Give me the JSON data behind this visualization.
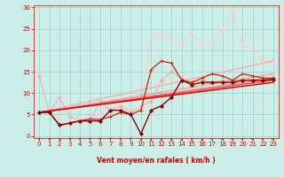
{
  "background_color": "#cceee8",
  "grid_color": "#aad8d0",
  "xlabel": "Vent moyen/en rafales ( km/h )",
  "xlabel_color": "#cc0000",
  "tick_color": "#cc0000",
  "xlim": [
    -0.5,
    23.5
  ],
  "ylim": [
    -0.5,
    30.5
  ],
  "xticks": [
    0,
    1,
    2,
    3,
    4,
    5,
    6,
    7,
    8,
    9,
    10,
    11,
    12,
    13,
    14,
    15,
    16,
    17,
    18,
    19,
    20,
    21,
    22,
    23
  ],
  "yticks": [
    0,
    5,
    10,
    15,
    20,
    25,
    30
  ],
  "series": [
    {
      "x": [
        0,
        1,
        2,
        3,
        4,
        5,
        6,
        7,
        8,
        9,
        10,
        11,
        12,
        13,
        14,
        15,
        16,
        17,
        18,
        19,
        20,
        21,
        22,
        23
      ],
      "y": [
        14.0,
        5.5,
        9.0,
        4.5,
        3.5,
        3.5,
        8.0,
        6.0,
        7.0,
        5.5,
        7.0,
        8.0,
        13.0,
        15.0,
        13.5,
        12.5,
        13.0,
        12.5,
        13.0,
        12.8,
        13.0,
        13.2,
        13.3,
        13.5
      ],
      "color": "#ffaaaa",
      "lw": 0.8,
      "marker": "D",
      "ms": 2.0
    },
    {
      "x": [
        0,
        1,
        2,
        3,
        4,
        5,
        6,
        7,
        8,
        9,
        10,
        11,
        12,
        13,
        14,
        15,
        16,
        17,
        18,
        19,
        20,
        21,
        22,
        23
      ],
      "y": [
        5.5,
        5.5,
        4.0,
        3.5,
        4.5,
        3.5,
        5.0,
        8.0,
        5.5,
        5.0,
        6.5,
        23.0,
        24.0,
        22.5,
        21.5,
        24.0,
        21.5,
        21.0,
        25.0,
        29.0,
        21.0,
        20.5,
        17.5,
        17.0
      ],
      "color": "#ffcccc",
      "lw": 0.8,
      "marker": "D",
      "ms": 2.0
    },
    {
      "x": [
        0,
        23
      ],
      "y": [
        5.5,
        17.5
      ],
      "color": "#ffaaaa",
      "lw": 1.0,
      "marker": null,
      "ms": 0
    },
    {
      "x": [
        0,
        23
      ],
      "y": [
        5.5,
        14.5
      ],
      "color": "#ff9999",
      "lw": 1.0,
      "marker": null,
      "ms": 0
    },
    {
      "x": [
        0,
        23
      ],
      "y": [
        5.5,
        13.5
      ],
      "color": "#ff7777",
      "lw": 1.0,
      "marker": null,
      "ms": 0
    },
    {
      "x": [
        0,
        23
      ],
      "y": [
        5.5,
        13.0
      ],
      "color": "#ee4444",
      "lw": 1.0,
      "marker": null,
      "ms": 0
    },
    {
      "x": [
        0,
        23
      ],
      "y": [
        5.5,
        12.5
      ],
      "color": "#cc0000",
      "lw": 1.0,
      "marker": null,
      "ms": 0
    },
    {
      "x": [
        0,
        1,
        2,
        3,
        4,
        5,
        6,
        7,
        8,
        9,
        10,
        11,
        12,
        13,
        14,
        15,
        16,
        17,
        18,
        19,
        20,
        21,
        22,
        23
      ],
      "y": [
        5.5,
        5.5,
        2.5,
        3.0,
        3.5,
        4.0,
        3.8,
        4.5,
        5.5,
        5.0,
        6.0,
        15.5,
        17.5,
        17.0,
        13.0,
        12.5,
        13.5,
        14.5,
        14.0,
        13.0,
        14.5,
        14.0,
        13.5,
        13.5
      ],
      "color": "#cc2200",
      "lw": 0.9,
      "marker": "+",
      "ms": 3.5
    },
    {
      "x": [
        0,
        1,
        2,
        3,
        4,
        5,
        6,
        7,
        8,
        9,
        10,
        11,
        12,
        13,
        14,
        15,
        16,
        17,
        18,
        19,
        20,
        21,
        22,
        23
      ],
      "y": [
        5.5,
        5.5,
        2.5,
        3.0,
        3.5,
        3.5,
        3.5,
        6.0,
        6.0,
        5.0,
        0.5,
        6.0,
        7.0,
        9.0,
        13.0,
        12.0,
        12.5,
        12.5,
        12.5,
        12.5,
        13.0,
        13.0,
        13.0,
        13.2
      ],
      "color": "#880000",
      "lw": 1.0,
      "marker": "D",
      "ms": 2.0
    }
  ],
  "arrow_color": "#cc2222",
  "arrow_angles": [
    270,
    270,
    315,
    270,
    270,
    270,
    270,
    270,
    270,
    270,
    90,
    90,
    90,
    90,
    90,
    90,
    90,
    135,
    135,
    135,
    135,
    135,
    135,
    135
  ]
}
